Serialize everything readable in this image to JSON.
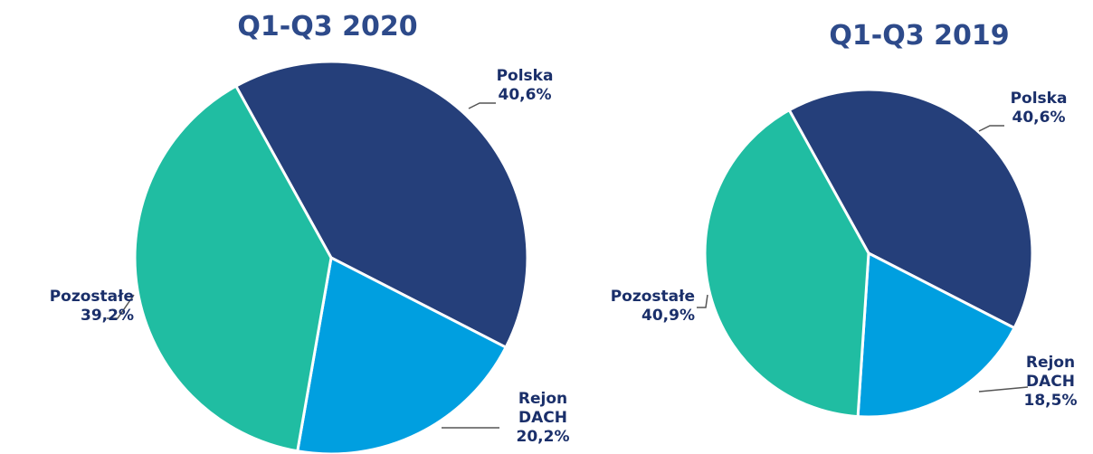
{
  "chart_data": [
    {
      "type": "pie",
      "title": "Q1-Q3 2020",
      "categories": [
        "Polska",
        "Rejon DACH",
        "Pozostałe"
      ],
      "values": [
        40.6,
        20.2,
        39.2
      ],
      "value_labels": [
        "40,6%",
        "20,2%",
        "39,2%"
      ],
      "colors": [
        "#253f7a",
        "#009fe0",
        "#20bda2"
      ]
    },
    {
      "type": "pie",
      "title": "Q1-Q3 2019",
      "categories": [
        "Polska",
        "Rejon DACH",
        "Pozostałe"
      ],
      "values": [
        40.6,
        18.5,
        40.9
      ],
      "value_labels": [
        "40,6%",
        "18,5%",
        "40,9%"
      ],
      "colors": [
        "#253f7a",
        "#009fe0",
        "#20bda2"
      ]
    }
  ]
}
